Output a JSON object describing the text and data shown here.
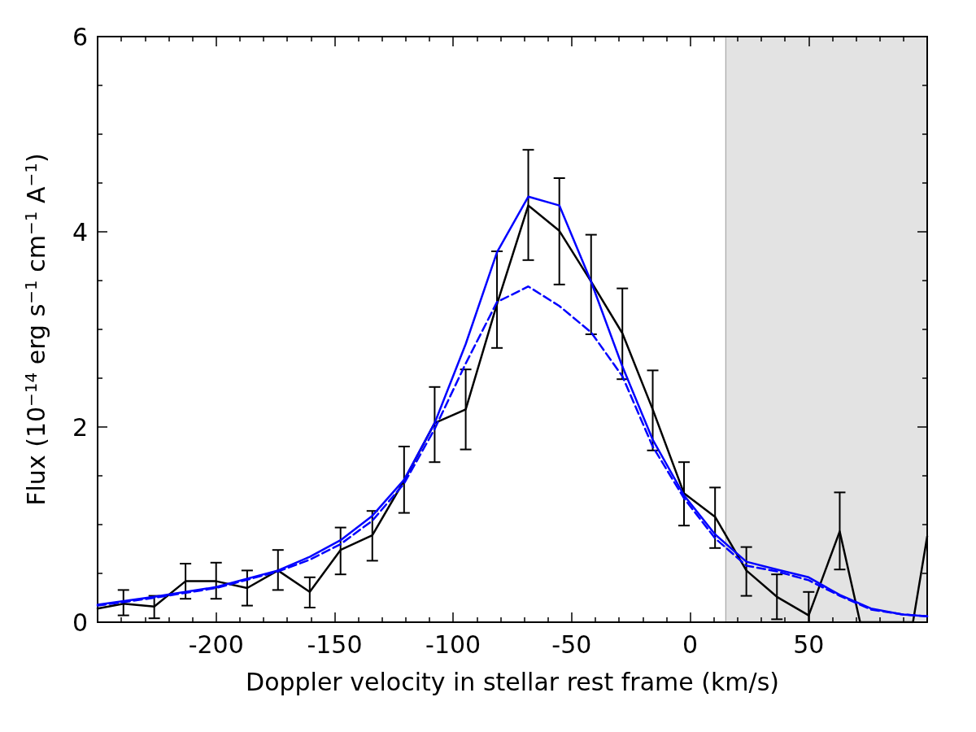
{
  "chart_data": {
    "type": "line",
    "xlabel": "Doppler velocity in stellar rest frame (km/s)",
    "ylabel": "Flux (10$^{−14}$ erg s$^{−1}$ cm$^{−1}$ A$^{−1}$)",
    "xlim": [
      -250,
      100
    ],
    "xticks": [
      -200,
      -150,
      -100,
      -50,
      0,
      50
    ],
    "ylim": [
      0,
      6
    ],
    "yticks": [
      0,
      2,
      4,
      6
    ],
    "grid": false,
    "marker": "none",
    "bands": [
      {
        "axis": "x",
        "from": 15,
        "to": 100,
        "color": "#e3e3e3"
      }
    ],
    "series": [
      {
        "color": "#000000",
        "line_style": "solid",
        "x": [
          -250,
          -239.1,
          -226.1,
          -212.9,
          -200,
          -186.9,
          -173.9,
          -160.5,
          -147.5,
          -134.1,
          -120.7,
          -107.8,
          -94.7,
          -81.5,
          -68.3,
          -55.2,
          -41.8,
          -28.6,
          -15.8,
          -2.6,
          10.5,
          23.7,
          36.6,
          50,
          63.1,
          71.7,
          94,
          100
        ],
        "values": [
          0.14,
          0.19,
          0.16,
          0.42,
          0.42,
          0.35,
          0.53,
          0.31,
          0.74,
          0.89,
          1.45,
          2.04,
          2.18,
          3.26,
          4.27,
          4.01,
          3.49,
          2.96,
          2.18,
          1.32,
          1.08,
          0.53,
          0.26,
          0.07,
          0.93,
          0,
          0,
          0.88
        ],
        "errors": [
          null,
          [
            0.07,
            0.33
          ],
          [
            0.04,
            0.27
          ],
          [
            0.24,
            0.6
          ],
          [
            0.24,
            0.61
          ],
          [
            0.17,
            0.53
          ],
          [
            0.33,
            0.74
          ],
          [
            0.15,
            0.46
          ],
          [
            0.49,
            0.97
          ],
          [
            0.63,
            1.14
          ],
          [
            1.12,
            1.8
          ],
          [
            1.64,
            2.41
          ],
          [
            1.77,
            2.59
          ],
          [
            2.81,
            3.8
          ],
          [
            3.71,
            4.84
          ],
          [
            3.46,
            4.55
          ],
          [
            2.95,
            3.97
          ],
          [
            2.49,
            3.42
          ],
          [
            1.76,
            2.58
          ],
          [
            0.99,
            1.64
          ],
          [
            0.76,
            1.38
          ],
          [
            0.27,
            0.77
          ],
          [
            0.03,
            0.49
          ],
          [
            0,
            0.31
          ],
          [
            0.54,
            1.33
          ],
          null,
          null,
          null
        ]
      },
      {
        "color": "#0000ff",
        "line_style": "solid",
        "x": [
          -250,
          -226.1,
          -200,
          -173.9,
          -160.5,
          -147.5,
          -134.1,
          -120.7,
          -107.8,
          -94.7,
          -81.5,
          -68.3,
          -55.2,
          -41.8,
          -28.6,
          -15.8,
          -2.6,
          10.5,
          23.7,
          36.6,
          50,
          63.1,
          76.3,
          89.6,
          100
        ],
        "values": [
          0.18,
          0.26,
          0.36,
          0.53,
          0.67,
          0.84,
          1.09,
          1.46,
          2.04,
          2.85,
          3.79,
          4.36,
          4.27,
          3.49,
          2.62,
          1.87,
          1.3,
          0.9,
          0.62,
          0.54,
          0.46,
          0.28,
          0.14,
          0.08,
          0.06
        ]
      },
      {
        "color": "#0000ff",
        "line_style": "dashed",
        "x": [
          -250,
          -226.1,
          -200,
          -173.9,
          -160.5,
          -147.5,
          -134.1,
          -120.7,
          -107.8,
          -94.7,
          -81.5,
          -68.3,
          -55.2,
          -41.8,
          -28.6,
          -15.8,
          -2.6,
          10.5,
          23.7,
          36.6,
          50,
          63.1,
          76.3,
          89.6,
          100
        ],
        "values": [
          0.17,
          0.25,
          0.35,
          0.52,
          0.64,
          0.8,
          1.04,
          1.42,
          1.98,
          2.65,
          3.28,
          3.44,
          3.24,
          2.97,
          2.52,
          1.8,
          1.27,
          0.86,
          0.58,
          0.52,
          0.43,
          0.27,
          0.13,
          0.08,
          0.06
        ]
      }
    ]
  }
}
